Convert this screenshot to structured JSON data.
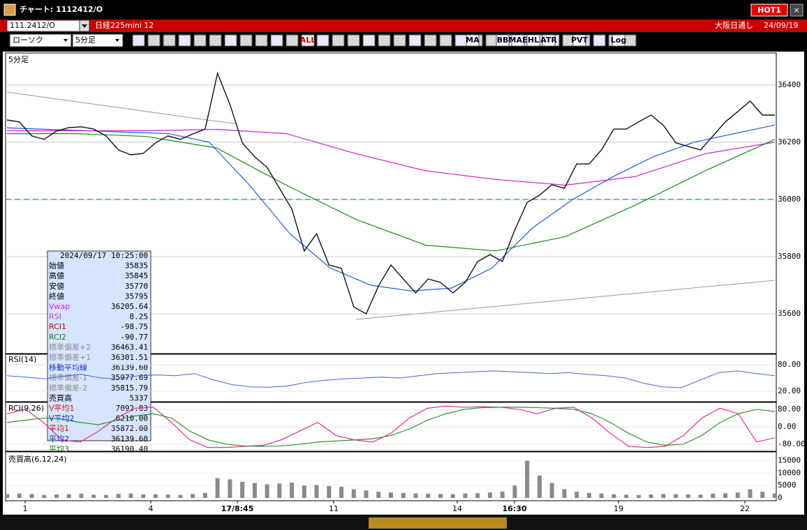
{
  "window": {
    "title": "チャート: 1112412/O",
    "hot_button": "HOT1",
    "close": "×"
  },
  "header": {
    "code": "111.2412/O",
    "name": "日経225mini 12",
    "market": "大阪日通し",
    "date": "24/09/19"
  },
  "toolbar": {
    "chart_type": "ローソク",
    "interval": "5分足",
    "buttons": [
      "ALL",
      "MA",
      "BB",
      "MAE",
      "HL",
      "ATR",
      "PVT",
      "Log"
    ]
  },
  "price_panel": {
    "label": "5分足",
    "ylim": [
      35461,
      36512
    ],
    "yticks": [
      35600,
      35800,
      36000,
      36200,
      36400
    ],
    "ref_line": 36000,
    "close": {
      "color": "#111111",
      "values": [
        36278,
        36271,
        36222,
        36210,
        36239,
        36251,
        36254,
        36246,
        36222,
        36173,
        36156,
        36161,
        36198,
        36222,
        36210,
        36229,
        36246,
        36441,
        36332,
        36198,
        36149,
        36112,
        36039,
        35966,
        35820,
        35880,
        35771,
        35759,
        35624,
        35600,
        35698,
        35771,
        35722,
        35673,
        35722,
        35710,
        35673,
        35710,
        35783,
        35807,
        35783,
        35893,
        35990,
        36015,
        36051,
        36039,
        36124,
        36124,
        36173,
        36246,
        36246,
        36271,
        36295,
        36259,
        36198,
        36185,
        36173,
        36222,
        36271,
        36307,
        36344,
        36295,
        36295
      ]
    },
    "lines": [
      {
        "color": "#1e5adc",
        "values": [
          36250,
          36245,
          36240,
          36235,
          36230,
          36200,
          36050,
          35880,
          35760,
          35700,
          35680,
          35690,
          35760,
          35900,
          36000,
          36080,
          36150,
          36200,
          36230,
          36260
        ]
      },
      {
        "color": "#d020d0",
        "values": [
          36240,
          36240,
          36240,
          36245,
          36230,
          36160,
          36100,
          36070,
          36050,
          36080,
          36160,
          36200
        ]
      },
      {
        "color": "#1a8a1a",
        "values": [
          36230,
          36230,
          36220,
          36180,
          36050,
          35930,
          35840,
          35820,
          35870,
          35980,
          36100,
          36210
        ]
      }
    ]
  },
  "info_box": {
    "datetime": "2024/09/17  10:25:00",
    "rows": [
      {
        "label": "始値",
        "value": "35835",
        "color": "#000000"
      },
      {
        "label": "高値",
        "value": "35845",
        "color": "#000000"
      },
      {
        "label": "安値",
        "value": "35770",
        "color": "#000000"
      },
      {
        "label": "終値",
        "value": "35795",
        "color": "#000000"
      },
      {
        "label": "Vwap",
        "value": "36205.64",
        "color": "#d020d0"
      },
      {
        "label": "RSI",
        "value": "8.25",
        "color": "#c040c0"
      },
      {
        "label": "RCI1",
        "value": "-98.75",
        "color": "#d00000"
      },
      {
        "label": "RCI2",
        "value": "-90.77",
        "color": "#108010"
      },
      {
        "label": "標準偏差+2",
        "value": "36463.41",
        "color": "#909090"
      },
      {
        "label": "標準偏差+1",
        "value": "36301.51",
        "color": "#909090"
      },
      {
        "label": "移動平均線",
        "value": "36139.60",
        "color": "#1030c0"
      },
      {
        "label": "標準偏差-1",
        "value": "35977.69",
        "color": "#909090"
      },
      {
        "label": "標準偏差-2",
        "value": "35815.79",
        "color": "#909090"
      },
      {
        "label": "売買高",
        "value": "5337",
        "color": "#000000"
      },
      {
        "label": "V平均1",
        "value": "7092.83",
        "color": "#d00000"
      },
      {
        "label": "V平均2",
        "value": "6210.00",
        "color": "#1030c0"
      },
      {
        "label": "平均1",
        "value": "35872.00",
        "color": "#d00000"
      },
      {
        "label": "平均2",
        "value": "36139.60",
        "color": "#1030c0"
      },
      {
        "label": "平均3",
        "value": "36190.40",
        "color": "#108010"
      }
    ]
  },
  "rsi_panel": {
    "label": "RSI(14)",
    "ylim": [
      -3.7,
      103.7
    ],
    "yticks": [
      {
        "value": 20,
        "label": "20.00"
      },
      {
        "value": 80,
        "label": "80.00"
      }
    ],
    "series": [
      {
        "color": "#3a6ad8",
        "values": [
          55,
          52,
          48,
          54,
          58,
          50,
          48,
          55,
          57,
          55,
          60,
          46,
          35,
          30,
          29,
          32,
          40,
          45,
          48,
          50,
          52,
          50,
          55,
          60,
          62,
          64,
          66,
          64,
          62,
          60,
          62,
          58,
          55,
          50,
          38,
          30,
          28,
          45,
          62,
          66,
          60,
          55
        ]
      }
    ]
  },
  "rci_panel": {
    "label": "RCI(9,26)",
    "ylim": [
      -112,
      112
    ],
    "yticks": [
      {
        "value": -80,
        "label": "-80.00"
      },
      {
        "value": 0,
        "label": "0.00"
      },
      {
        "value": 80,
        "label": "80.00"
      }
    ],
    "series": [
      {
        "color": "#e0208a",
        "values": [
          60,
          80,
          20,
          -60,
          -70,
          -20,
          40,
          85,
          90,
          20,
          -60,
          -95,
          -95,
          -90,
          -85,
          -60,
          -20,
          20,
          -40,
          -60,
          -70,
          -30,
          40,
          85,
          95,
          90,
          92,
          90,
          80,
          60,
          85,
          90,
          40,
          -30,
          -90,
          -95,
          -90,
          -40,
          40,
          85,
          60,
          -70,
          -50
        ]
      },
      {
        "color": "#1a8a1a",
        "values": [
          20,
          30,
          40,
          35,
          20,
          10,
          30,
          50,
          60,
          40,
          -20,
          -60,
          -80,
          -88,
          -90,
          -88,
          -80,
          -70,
          -65,
          -60,
          -55,
          -40,
          -10,
          30,
          60,
          80,
          88,
          90,
          90,
          88,
          85,
          80,
          60,
          20,
          -30,
          -70,
          -85,
          -80,
          -40,
          20,
          60,
          80,
          70
        ]
      }
    ]
  },
  "volume_panel": {
    "label": "売買高(6,12,24)",
    "ylim": [
      0,
      18000
    ],
    "yticks": [
      0,
      5000,
      10000,
      15000
    ],
    "bar_color": "#8a8a8a",
    "values": [
      1500,
      1800,
      1600,
      1200,
      1400,
      1500,
      1700,
      1300,
      1200,
      1600,
      1800,
      1400,
      1500,
      1300,
      1200,
      1600,
      2000,
      8000,
      7500,
      6500,
      6000,
      5500,
      5800,
      6200,
      5000,
      5200,
      4800,
      4500,
      3500,
      3000,
      2500,
      2200,
      2000,
      1800,
      1700,
      1600,
      1500,
      1800,
      1900,
      2200,
      2600,
      5000,
      15000,
      9000,
      6000,
      3500,
      2500,
      2000,
      1800,
      1500,
      1300,
      1200,
      1400,
      1600,
      1500,
      1400,
      1300,
      1700,
      1900,
      2200,
      3500,
      2500,
      1800
    ]
  },
  "x_axis": {
    "labels": [
      "1",
      "4",
      "17/8:45",
      "11",
      "14",
      "16:30",
      "19",
      "22"
    ],
    "bold": [
      false,
      false,
      true,
      false,
      false,
      true,
      false,
      false
    ]
  }
}
